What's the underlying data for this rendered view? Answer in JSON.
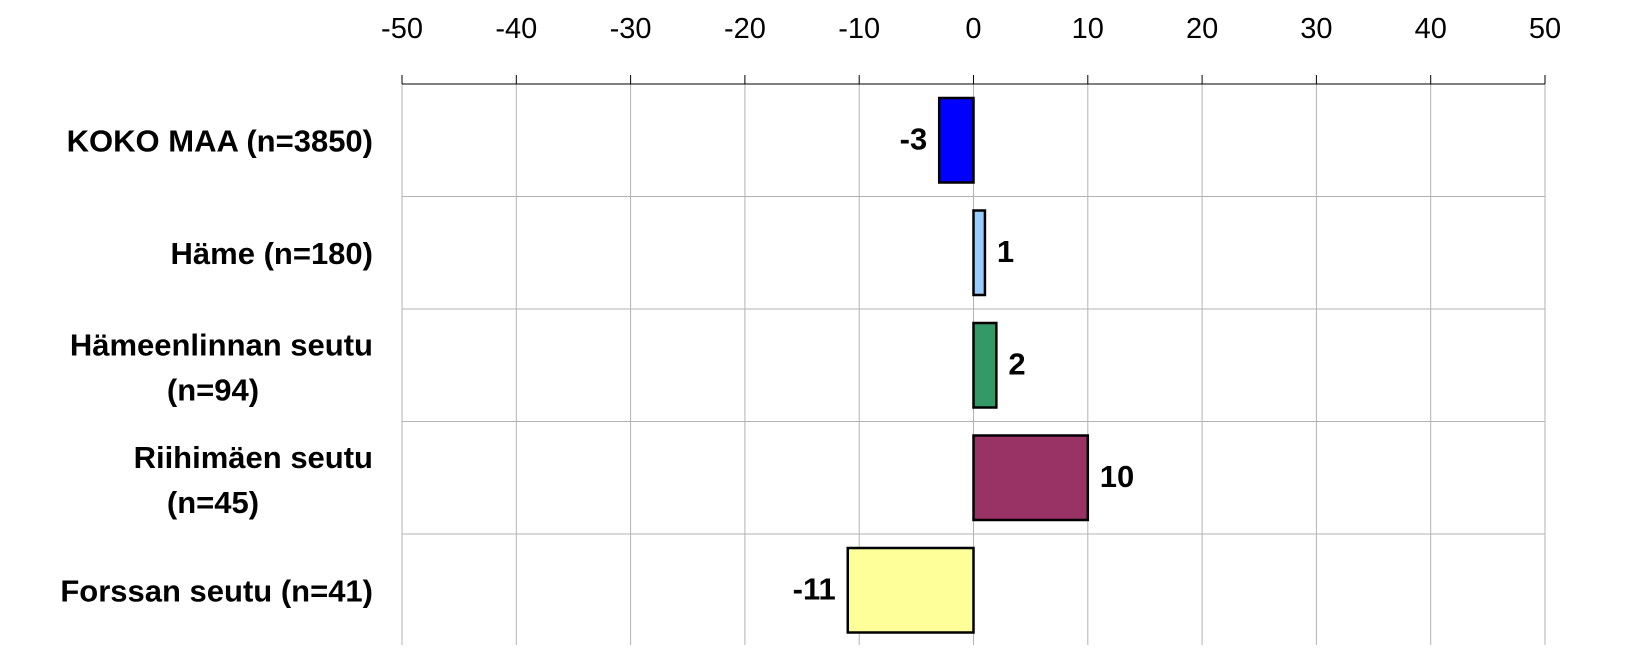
{
  "chart_data": {
    "type": "bar",
    "orientation": "horizontal",
    "categories": [
      "KOKO MAA (n=3850)",
      "Häme (n=180)",
      "Hämeenlinnan seutu (n=94)",
      "Riihimäen seutu (n=45)",
      "Forssan seutu (n=41)"
    ],
    "values": [
      -3,
      1,
      2,
      10,
      -11
    ],
    "data_labels": [
      "-3",
      "1",
      "2",
      "10",
      "-11"
    ],
    "colors": [
      "#0000ff",
      "#99ccff",
      "#339966",
      "#993366",
      "#ffff99"
    ],
    "xlim": [
      -50,
      50
    ],
    "xticks": [
      -50,
      -40,
      -30,
      -20,
      -10,
      0,
      10,
      20,
      30,
      40,
      50
    ],
    "x_axis_position": "top",
    "grid": true,
    "title": "",
    "xlabel": "",
    "ylabel": ""
  }
}
